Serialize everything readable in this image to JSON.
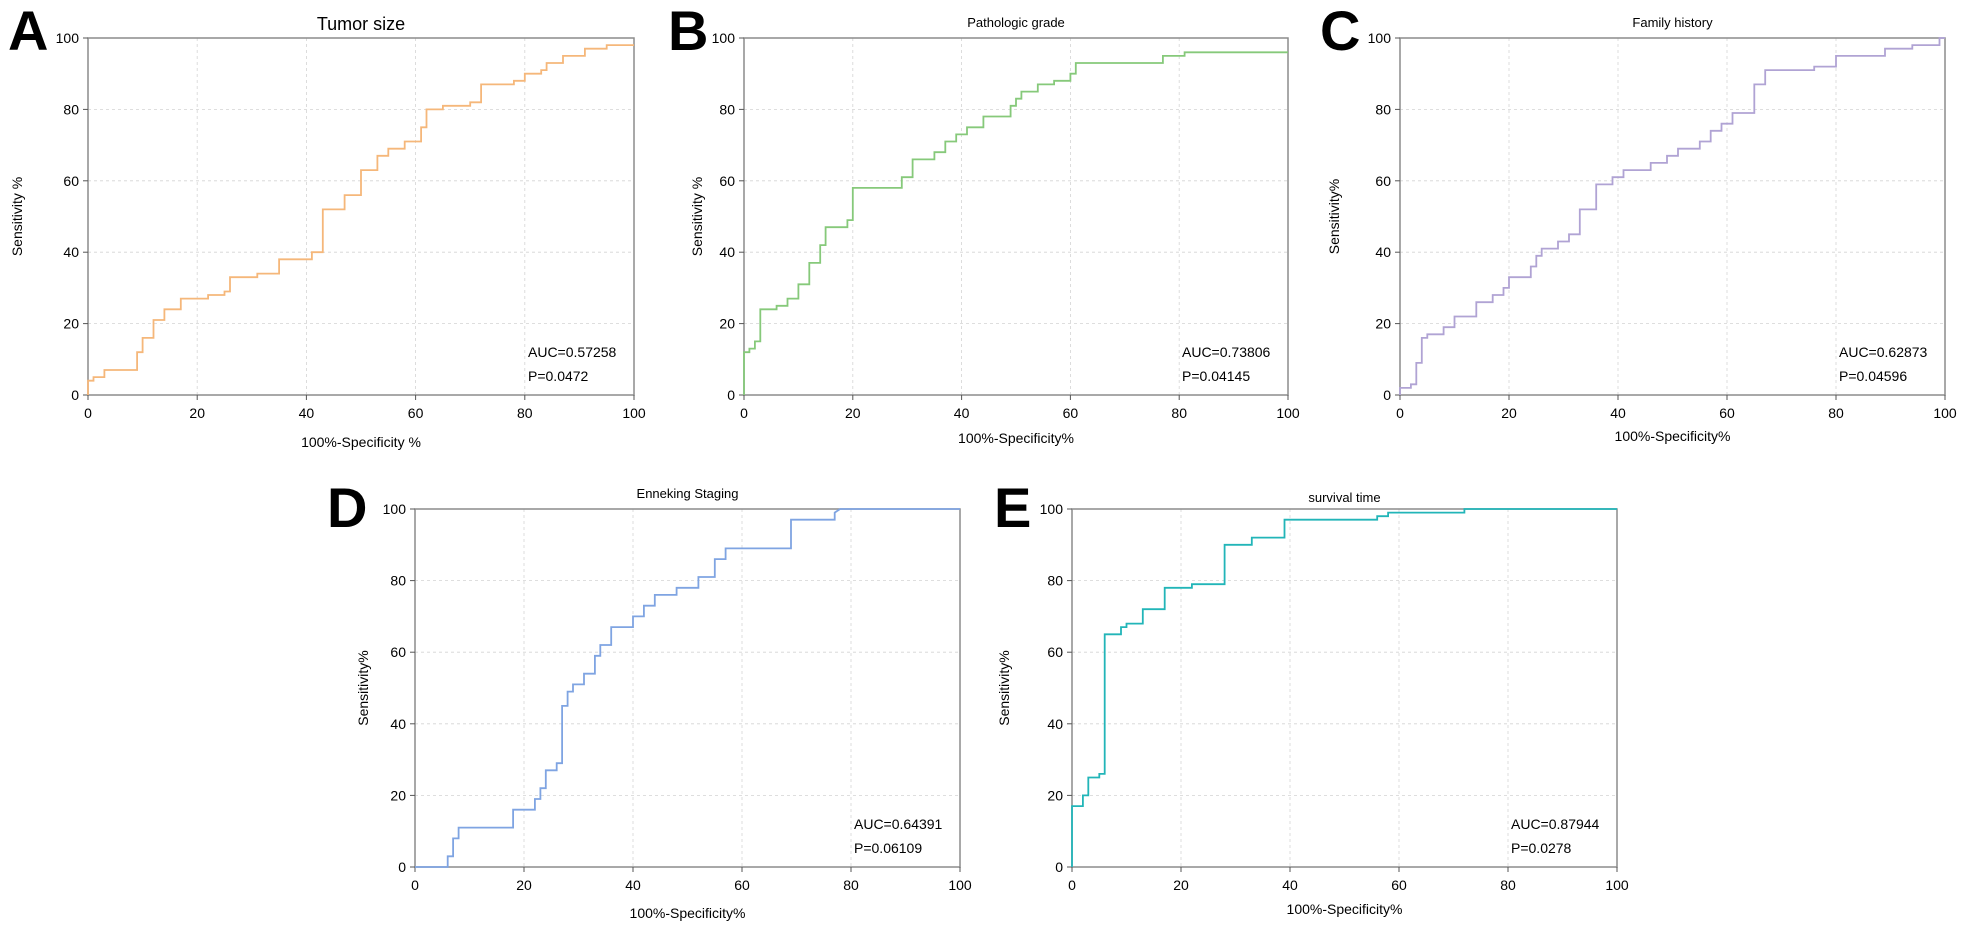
{
  "chart_data": [
    {
      "type": "line",
      "panel": "A",
      "title": "Tumor size",
      "xlabel": "100%-Specificity %",
      "ylabel": "Sensitivity %",
      "xlim": [
        0,
        100
      ],
      "ylim": [
        0,
        100
      ],
      "xticks": [
        "0",
        "20",
        "40",
        "60",
        "80",
        "100"
      ],
      "yticks": [
        "0",
        "20",
        "40",
        "60",
        "80",
        "100"
      ],
      "grid": true,
      "color": "#f5b77a",
      "auc": "AUC=0.57258",
      "p": "P=0.0472",
      "series": [
        {
          "name": "Tumor size",
          "x": [
            0,
            0,
            1,
            1,
            3,
            3,
            9,
            9,
            10,
            10,
            12,
            12,
            14,
            14,
            17,
            17,
            22,
            22,
            25,
            25,
            26,
            26,
            31,
            31,
            35,
            35,
            41,
            41,
            43,
            43,
            43,
            43,
            47,
            47,
            50,
            50,
            53,
            53,
            55,
            55,
            58,
            58,
            61,
            61,
            62,
            62,
            65,
            65,
            70,
            70,
            72,
            72,
            78,
            78,
            80,
            80,
            83,
            83,
            84,
            84,
            87,
            87,
            91,
            91,
            95,
            95,
            100
          ],
          "y": [
            0,
            4,
            4,
            5,
            5,
            7,
            7,
            12,
            12,
            16,
            16,
            21,
            21,
            24,
            24,
            27,
            27,
            28,
            28,
            29,
            29,
            33,
            33,
            34,
            34,
            38,
            38,
            40,
            40,
            42,
            42,
            52,
            52,
            56,
            56,
            63,
            63,
            67,
            67,
            69,
            69,
            71,
            71,
            75,
            75,
            80,
            80,
            81,
            81,
            82,
            82,
            87,
            87,
            88,
            88,
            90,
            90,
            91,
            91,
            93,
            93,
            95,
            95,
            97,
            97,
            98,
            98
          ]
        }
      ]
    },
    {
      "type": "line",
      "panel": "B",
      "title": "Pathologic grade",
      "xlabel": "100%-Specificity%",
      "ylabel": "Sensitivity %",
      "xlim": [
        0,
        100
      ],
      "ylim": [
        0,
        100
      ],
      "xticks": [
        "0",
        "20",
        "40",
        "60",
        "80",
        "100"
      ],
      "yticks": [
        "0",
        "20",
        "40",
        "60",
        "80",
        "100"
      ],
      "grid": true,
      "color": "#86c97a",
      "auc": "AUC=0.73806",
      "p": "P=0.04145",
      "series": [
        {
          "name": "Pathologic grade",
          "x": [
            0,
            0,
            1,
            1,
            2,
            2,
            3,
            3,
            6,
            6,
            8,
            8,
            10,
            10,
            12,
            12,
            14,
            14,
            15,
            15,
            19,
            19,
            20,
            20,
            29,
            29,
            31,
            31,
            35,
            35,
            37,
            37,
            39,
            39,
            41,
            41,
            44,
            44,
            49,
            49,
            50,
            50,
            51,
            51,
            54,
            54,
            57,
            57,
            60,
            60,
            61,
            61,
            77,
            77,
            81,
            81,
            100
          ],
          "y": [
            0,
            12,
            12,
            13,
            13,
            15,
            15,
            24,
            24,
            25,
            25,
            27,
            27,
            31,
            31,
            37,
            37,
            42,
            42,
            47,
            47,
            49,
            49,
            58,
            58,
            61,
            61,
            66,
            66,
            68,
            68,
            71,
            71,
            73,
            73,
            75,
            75,
            78,
            78,
            81,
            81,
            83,
            83,
            85,
            85,
            87,
            87,
            88,
            88,
            90,
            90,
            93,
            93,
            95,
            95,
            96,
            96
          ]
        }
      ]
    },
    {
      "type": "line",
      "panel": "C",
      "title": "Family history",
      "xlabel": "100%-Specificity%",
      "ylabel": "Sensitivity%",
      "xlim": [
        0,
        100
      ],
      "ylim": [
        0,
        100
      ],
      "xticks": [
        "0",
        "20",
        "40",
        "60",
        "80",
        "100"
      ],
      "yticks": [
        "0",
        "20",
        "40",
        "60",
        "80",
        "100"
      ],
      "grid": true,
      "color": "#b0a3d4",
      "auc": "AUC=0.62873",
      "p": "P=0.04596",
      "series": [
        {
          "name": "Family history",
          "x": [
            0,
            0,
            2,
            2,
            3,
            3,
            4,
            4,
            5,
            5,
            8,
            8,
            10,
            10,
            14,
            14,
            17,
            17,
            19,
            19,
            20,
            20,
            24,
            24,
            25,
            25,
            26,
            26,
            29,
            29,
            31,
            31,
            33,
            33,
            36,
            36,
            39,
            39,
            41,
            41,
            46,
            46,
            49,
            49,
            51,
            51,
            55,
            55,
            57,
            57,
            59,
            59,
            61,
            61,
            65,
            65,
            67,
            67,
            76,
            76,
            80,
            80,
            89,
            89,
            94,
            94,
            99,
            99,
            100
          ],
          "y": [
            0,
            2,
            2,
            3,
            3,
            9,
            9,
            16,
            16,
            17,
            17,
            19,
            19,
            22,
            22,
            26,
            26,
            28,
            28,
            30,
            30,
            33,
            33,
            36,
            36,
            39,
            39,
            41,
            41,
            43,
            43,
            45,
            45,
            52,
            52,
            59,
            59,
            61,
            61,
            63,
            63,
            65,
            65,
            67,
            67,
            69,
            69,
            71,
            71,
            74,
            74,
            76,
            76,
            79,
            79,
            87,
            87,
            91,
            91,
            92,
            92,
            95,
            95,
            97,
            97,
            98,
            98,
            100,
            100
          ]
        }
      ]
    },
    {
      "type": "line",
      "panel": "D",
      "title": "Enneking Staging",
      "xlabel": "100%-Specificity%",
      "ylabel": "Sensitivity%",
      "xlim": [
        0,
        100
      ],
      "ylim": [
        0,
        100
      ],
      "xticks": [
        "0",
        "20",
        "40",
        "60",
        "80",
        "100"
      ],
      "yticks": [
        "0",
        "20",
        "40",
        "60",
        "80",
        "100"
      ],
      "grid": true,
      "color": "#7fa4e2",
      "auc": "AUC=0.64391",
      "p": "P=0.06109",
      "series": [
        {
          "name": "Enneking Staging",
          "x": [
            0,
            6,
            6,
            7,
            7,
            8,
            8,
            18,
            18,
            22,
            22,
            23,
            23,
            24,
            24,
            26,
            26,
            27,
            27,
            28,
            28,
            29,
            29,
            31,
            31,
            33,
            33,
            34,
            34,
            36,
            36,
            40,
            40,
            42,
            42,
            44,
            44,
            48,
            48,
            52,
            52,
            55,
            55,
            57,
            57,
            58,
            58,
            69,
            69,
            77,
            77,
            78,
            100
          ],
          "y": [
            0,
            0,
            3,
            3,
            8,
            8,
            11,
            11,
            16,
            16,
            19,
            19,
            22,
            22,
            27,
            27,
            29,
            29,
            45,
            45,
            49,
            49,
            51,
            51,
            54,
            54,
            59,
            59,
            62,
            62,
            67,
            67,
            70,
            70,
            73,
            73,
            76,
            76,
            78,
            78,
            81,
            81,
            86,
            86,
            89,
            89,
            89,
            89,
            97,
            97,
            99,
            100,
            100
          ]
        }
      ]
    },
    {
      "type": "line",
      "panel": "E",
      "title": "survival time",
      "xlabel": "100%-Specificity%",
      "ylabel": "Sensitivity%",
      "xlim": [
        0,
        100
      ],
      "ylim": [
        0,
        100
      ],
      "xticks": [
        "0",
        "20",
        "40",
        "60",
        "80",
        "100"
      ],
      "yticks": [
        "0",
        "20",
        "40",
        "60",
        "80",
        "100"
      ],
      "grid": true,
      "color": "#22b5b8",
      "auc": "AUC=0.87944",
      "p": "P=0.0278",
      "series": [
        {
          "name": "survival time",
          "x": [
            0,
            0,
            2,
            2,
            3,
            3,
            5,
            5,
            6,
            6,
            9,
            9,
            10,
            10,
            13,
            13,
            17,
            17,
            22,
            22,
            28,
            28,
            33,
            33,
            39,
            39,
            56,
            56,
            58,
            58,
            72,
            72,
            100
          ],
          "y": [
            0,
            17,
            17,
            20,
            20,
            25,
            25,
            26,
            26,
            65,
            65,
            67,
            67,
            68,
            68,
            72,
            72,
            78,
            78,
            79,
            79,
            90,
            90,
            92,
            92,
            97,
            97,
            98,
            98,
            99,
            99,
            100,
            100
          ]
        }
      ]
    }
  ]
}
